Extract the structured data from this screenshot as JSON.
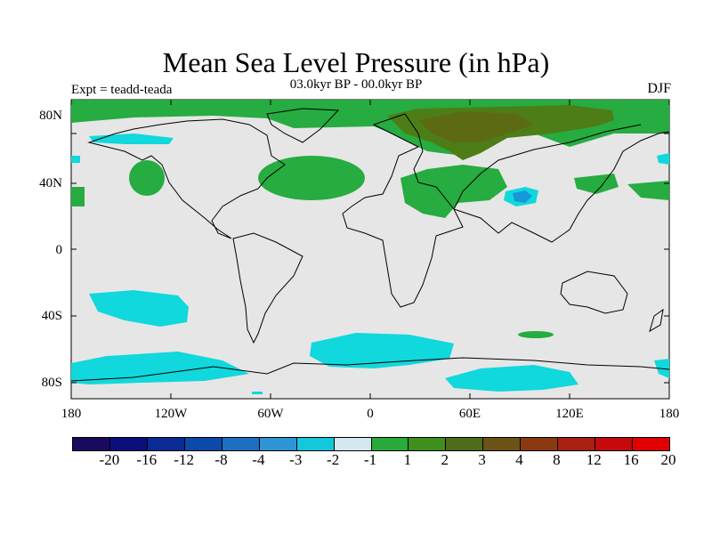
{
  "title": "Mean Sea Level Pressure (in hPa)",
  "subtitle": "03.0kyr BP - 00.0kyr BP",
  "left_label": "Expt = teadd-teada",
  "right_label": "DJF",
  "lat_labels": [
    "80N",
    "40N",
    "0",
    "40S",
    "80S"
  ],
  "lon_labels": [
    "180",
    "120W",
    "60W",
    "0",
    "60E",
    "120E",
    "180"
  ],
  "colorbar": {
    "colors": [
      "#1a0a5e",
      "#0b0f7a",
      "#0a2a96",
      "#0b4aa8",
      "#1f6fc0",
      "#2f94d4",
      "#14c8dc",
      "#d4e8ef",
      "#2aaa3a",
      "#3f8f1e",
      "#4f6c16",
      "#6a5314",
      "#8a3a10",
      "#a82010",
      "#c40a0a",
      "#e00000"
    ],
    "map_colors": {
      "background": "#e6e6e6",
      "pos1": "#26ac40",
      "pos2": "#4d7d16",
      "pos3": "#5c6a14",
      "neg1": "#10d8dc",
      "neg2": "#1898d8"
    },
    "labels": [
      "-20",
      "-16",
      "-12",
      "-8",
      "-4",
      "-3",
      "-2",
      "-1",
      "1",
      "2",
      "3",
      "4",
      "8",
      "12",
      "16",
      "20"
    ]
  }
}
